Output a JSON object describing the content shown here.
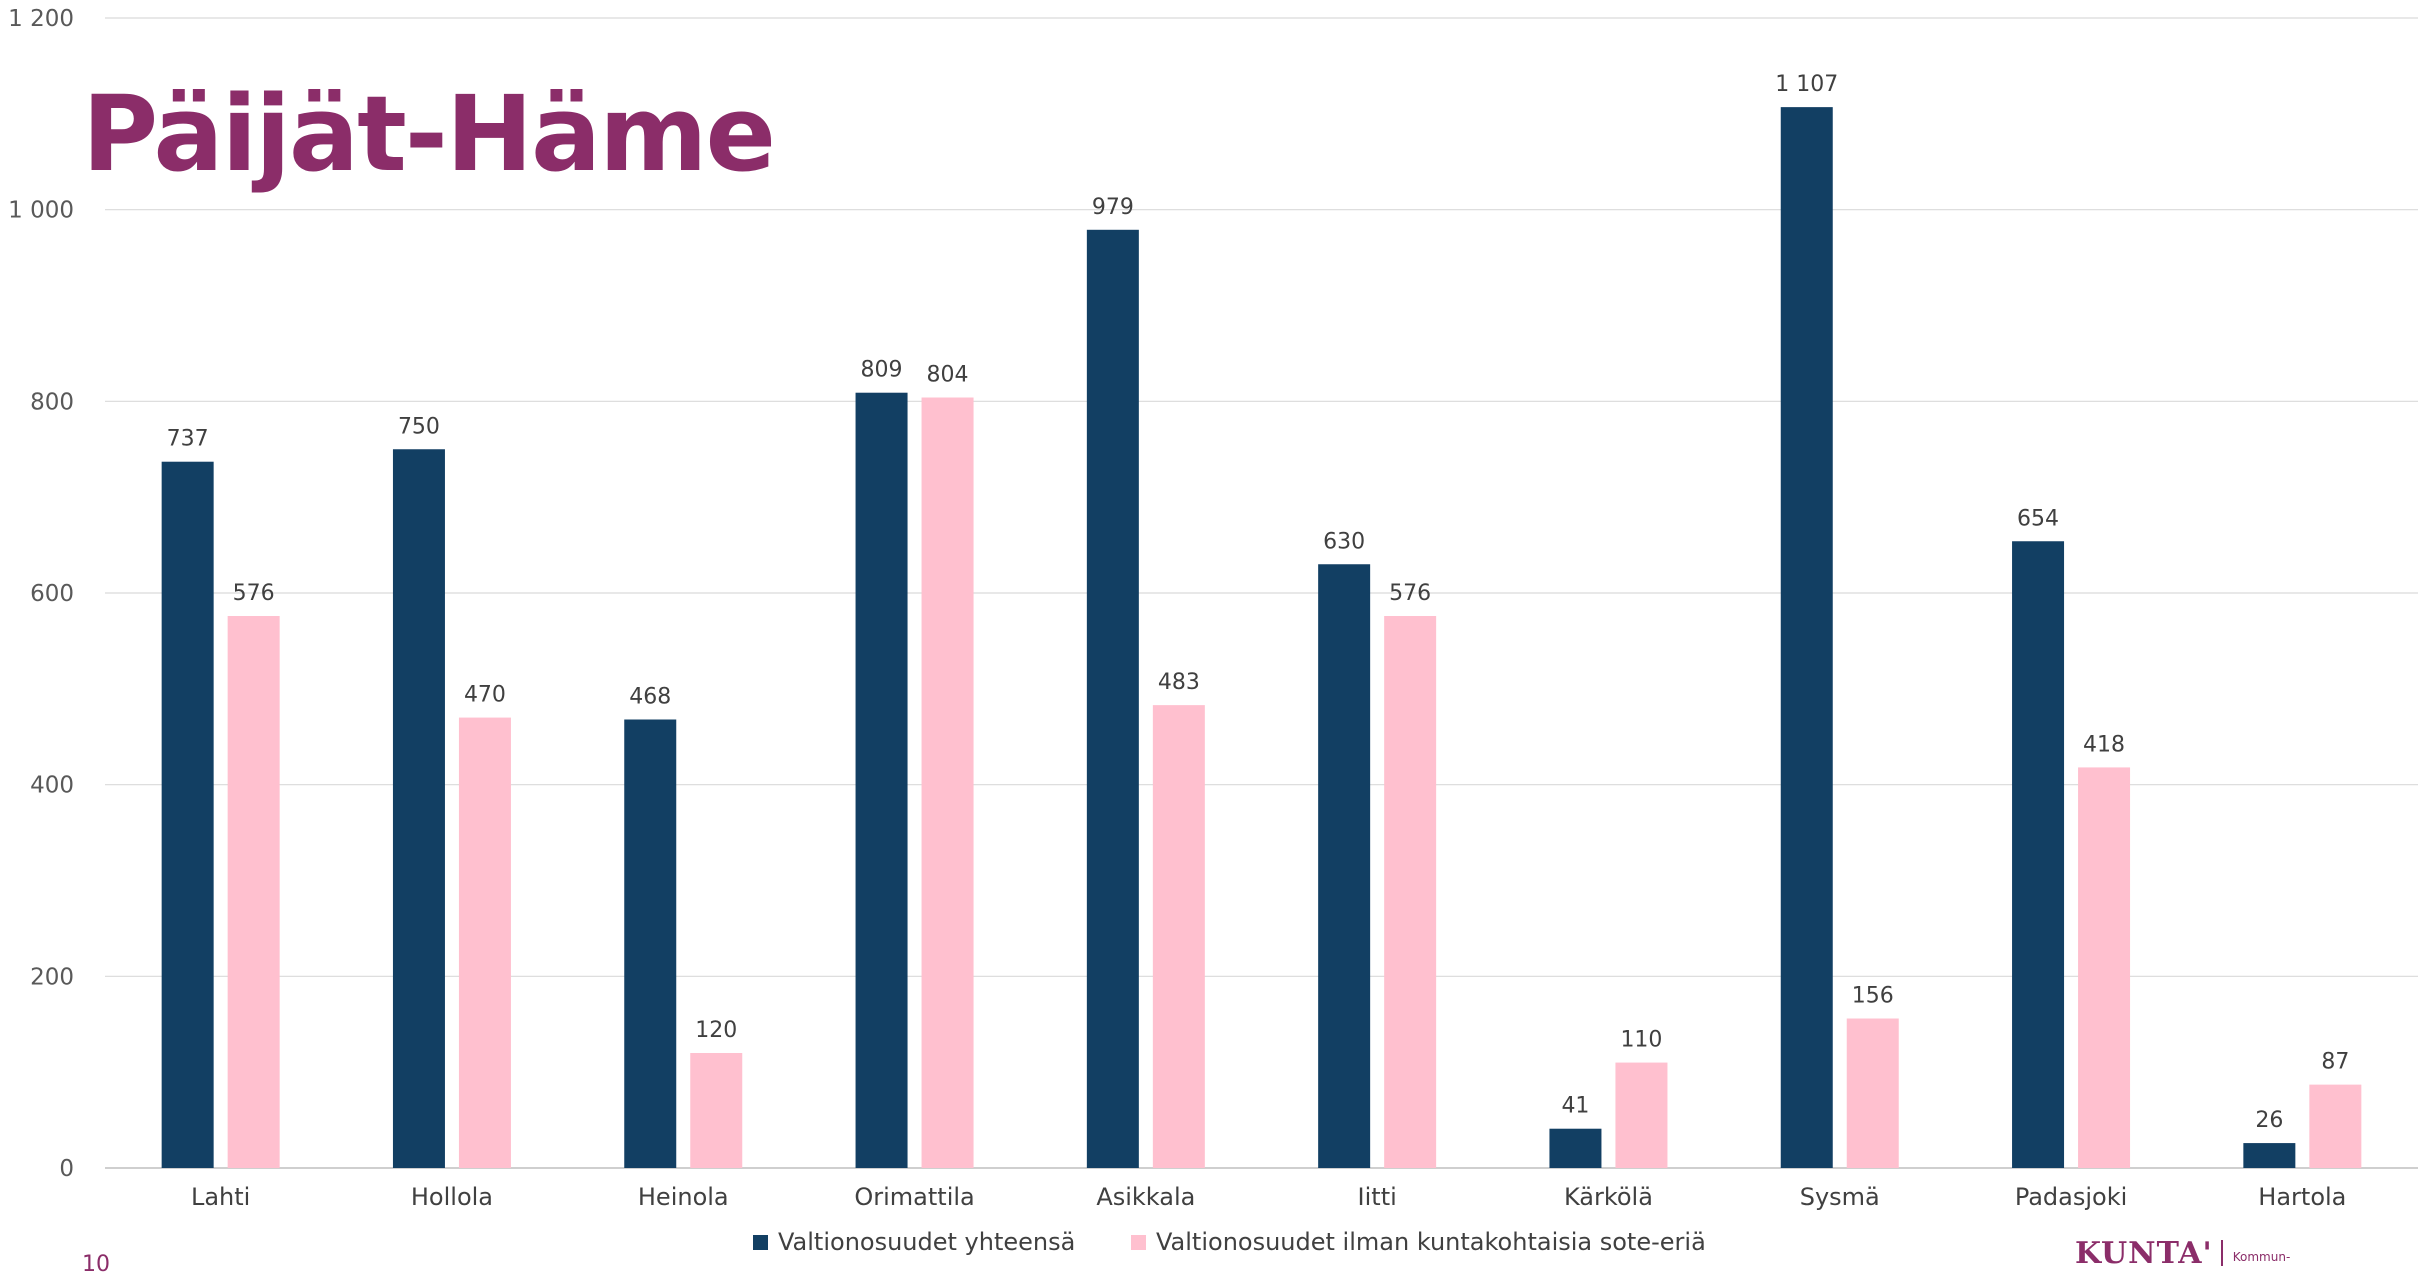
{
  "title": "Päijät-Häme",
  "page_number": "10",
  "logo": {
    "text": "KUNTA'",
    "subtext": "Kommun-"
  },
  "chart_data": {
    "type": "bar",
    "categories": [
      "Lahti",
      "Hollola",
      "Heinola",
      "Orimattila",
      "Asikkala",
      "Iitti",
      "Kärkölä",
      "Sysmä",
      "Padasjoki",
      "Hartola"
    ],
    "series": [
      {
        "name": "Valtionosuudet yhteensä",
        "color": "#123f63",
        "values": [
          737,
          750,
          468,
          809,
          979,
          630,
          41,
          1107,
          654,
          26
        ],
        "labels": [
          "737",
          "750",
          "468",
          "809",
          "979",
          "630",
          "41",
          "1 107",
          "654",
          "26"
        ]
      },
      {
        "name": "Valtionosuudet ilman kuntakohtaisia sote-eriä",
        "color": "#ffc0cf",
        "values": [
          576,
          470,
          120,
          804,
          483,
          576,
          110,
          156,
          418,
          87
        ],
        "labels": [
          "576",
          "470",
          "120",
          "804",
          "483",
          "576",
          "110",
          "156",
          "418",
          "87"
        ]
      }
    ],
    "ylim": [
      0,
      1200
    ],
    "yticks": [
      0,
      200,
      400,
      600,
      800,
      1000,
      1200
    ],
    "ytick_labels": [
      "0",
      "200",
      "400",
      "600",
      "800",
      "1 000",
      "1 200"
    ],
    "grid": true,
    "legend": "bottom",
    "xlabel": "",
    "ylabel": ""
  }
}
